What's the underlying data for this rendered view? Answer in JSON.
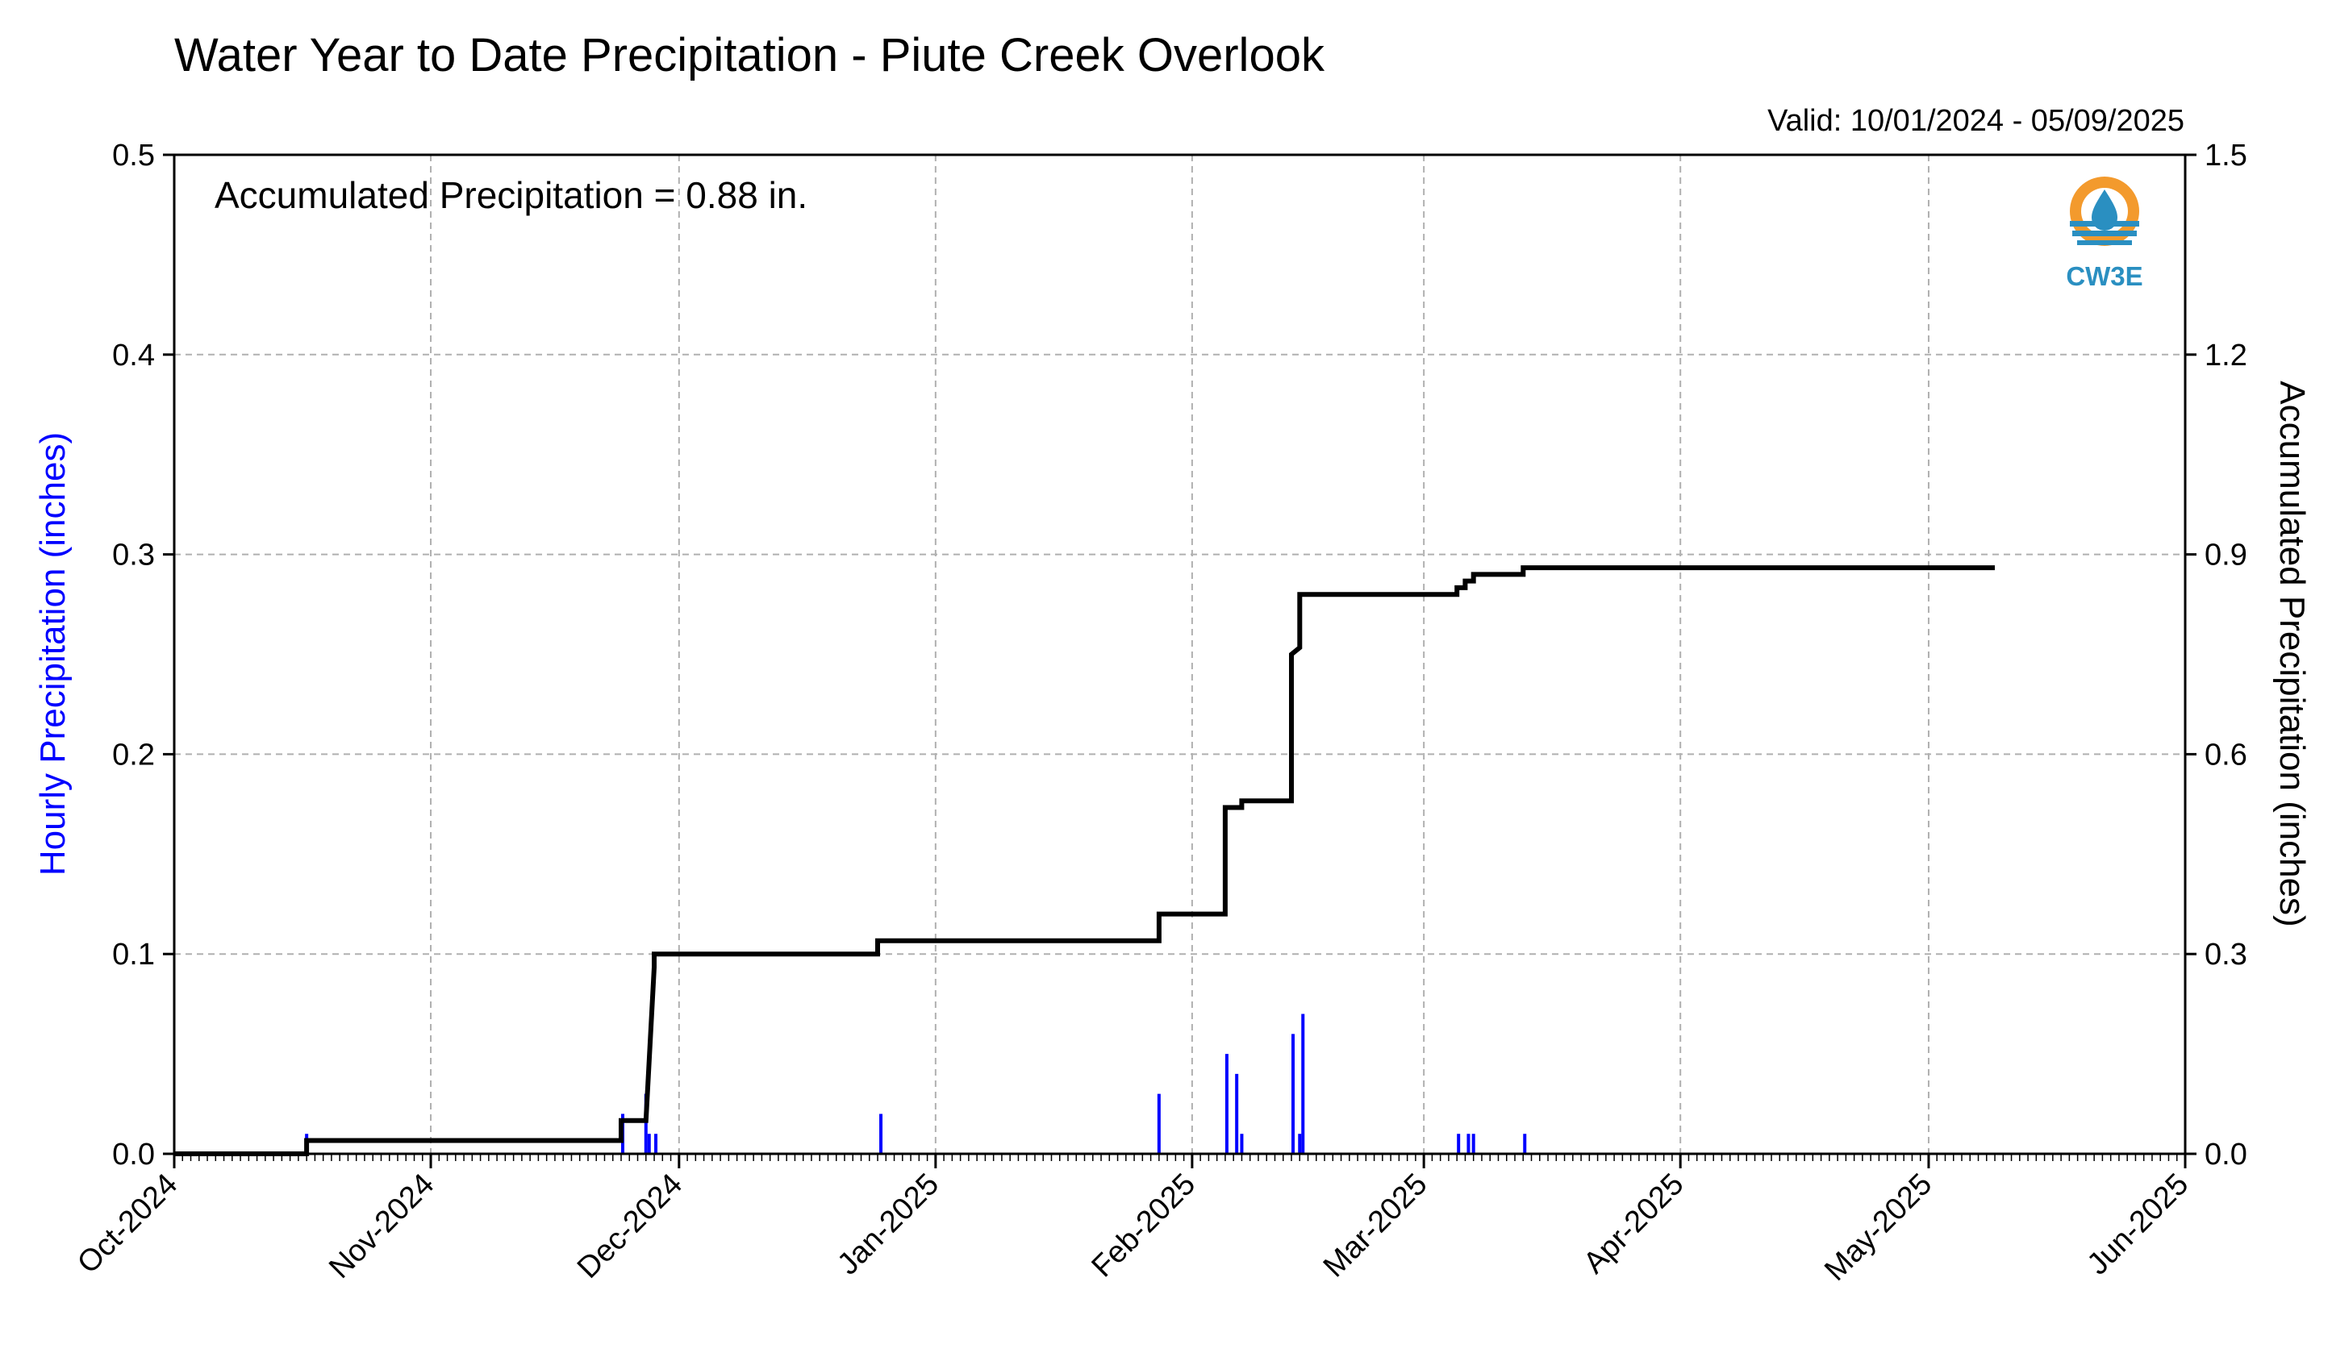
{
  "title": "Water Year to Date Precipitation - Piute Creek Overlook",
  "valid_text": "Valid: 10/01/2024 - 05/09/2025",
  "annotation": "Accumulated Precipitation = 0.88 in.",
  "logo": {
    "text": "CW3E",
    "icon": "water-drop-sun-icon",
    "colors": {
      "orange": "#f39a2d",
      "blue": "#2a8fc1"
    }
  },
  "colors": {
    "hourly": "#0000ff",
    "accumulated": "#000000",
    "grid": "#b0b0b0"
  },
  "chart_data": {
    "type": "bar+line",
    "title": "Water Year to Date Precipitation - Piute Creek Overlook",
    "ylabel_left": "Hourly Precipitation (inches)",
    "ylabel_right": "Accumulated Precipitation (inches)",
    "xlim": [
      "2024-10-01",
      "2025-06-01"
    ],
    "ylim_left": [
      0,
      0.5
    ],
    "ylim_right": [
      0,
      1.5
    ],
    "grid": true,
    "x_ticks": [
      {
        "date": "2024-10-01",
        "label": "Oct-2024"
      },
      {
        "date": "2024-11-01",
        "label": "Nov-2024"
      },
      {
        "date": "2024-12-01",
        "label": "Dec-2024"
      },
      {
        "date": "2025-01-01",
        "label": "Jan-2025"
      },
      {
        "date": "2025-02-01",
        "label": "Feb-2025"
      },
      {
        "date": "2025-03-01",
        "label": "Mar-2025"
      },
      {
        "date": "2025-04-01",
        "label": "Apr-2025"
      },
      {
        "date": "2025-05-01",
        "label": "May-2025"
      },
      {
        "date": "2025-06-01",
        "label": "Jun-2025"
      }
    ],
    "y_ticks_left": [
      "0.0",
      "0.1",
      "0.2",
      "0.3",
      "0.4",
      "0.5"
    ],
    "y_ticks_right": [
      "0.0",
      "0.3",
      "0.6",
      "0.9",
      "1.2",
      "1.5"
    ],
    "hourly_bars": [
      {
        "date": "2024-10-17",
        "value": 0.01
      },
      {
        "date": "2024-11-24",
        "value": 0.02
      },
      {
        "date": "2024-11-27",
        "value": 0.01
      },
      {
        "date": "2024-11-27",
        "value": 0.03
      },
      {
        "date": "2024-11-28",
        "value": 0.01
      },
      {
        "date": "2024-12-25",
        "value": 0.02
      },
      {
        "date": "2025-01-28",
        "value": 0.03
      },
      {
        "date": "2025-02-05",
        "value": 0.05
      },
      {
        "date": "2025-02-06",
        "value": 0.04
      },
      {
        "date": "2025-02-07",
        "value": 0.01
      },
      {
        "date": "2025-02-13",
        "value": 0.06
      },
      {
        "date": "2025-02-14",
        "value": 0.07
      },
      {
        "date": "2025-02-14",
        "value": 0.01
      },
      {
        "date": "2025-03-05",
        "value": 0.01
      },
      {
        "date": "2025-03-06",
        "value": 0.01
      },
      {
        "date": "2025-03-07",
        "value": 0.01
      },
      {
        "date": "2025-03-13",
        "value": 0.01
      }
    ],
    "accumulated": [
      {
        "date": "2024-10-01",
        "value": 0.0
      },
      {
        "date": "2024-10-17",
        "value": 0.0
      },
      {
        "date": "2024-10-17",
        "value": 0.02
      },
      {
        "date": "2024-11-24",
        "value": 0.02
      },
      {
        "date": "2024-11-24",
        "value": 0.05
      },
      {
        "date": "2024-11-27",
        "value": 0.05
      },
      {
        "date": "2024-11-28",
        "value": 0.28
      },
      {
        "date": "2024-11-28",
        "value": 0.3
      },
      {
        "date": "2024-12-25",
        "value": 0.3
      },
      {
        "date": "2024-12-25",
        "value": 0.32
      },
      {
        "date": "2025-01-28",
        "value": 0.32
      },
      {
        "date": "2025-01-28",
        "value": 0.36
      },
      {
        "date": "2025-02-05",
        "value": 0.36
      },
      {
        "date": "2025-02-05",
        "value": 0.52
      },
      {
        "date": "2025-02-07",
        "value": 0.52
      },
      {
        "date": "2025-02-07",
        "value": 0.53
      },
      {
        "date": "2025-02-13",
        "value": 0.53
      },
      {
        "date": "2025-02-13",
        "value": 0.75
      },
      {
        "date": "2025-02-14",
        "value": 0.76
      },
      {
        "date": "2025-02-14",
        "value": 0.84
      },
      {
        "date": "2025-03-05",
        "value": 0.84
      },
      {
        "date": "2025-03-05",
        "value": 0.85
      },
      {
        "date": "2025-03-06",
        "value": 0.85
      },
      {
        "date": "2025-03-06",
        "value": 0.86
      },
      {
        "date": "2025-03-07",
        "value": 0.86
      },
      {
        "date": "2025-03-07",
        "value": 0.87
      },
      {
        "date": "2025-03-13",
        "value": 0.87
      },
      {
        "date": "2025-03-13",
        "value": 0.88
      },
      {
        "date": "2025-05-09",
        "value": 0.88
      }
    ]
  }
}
